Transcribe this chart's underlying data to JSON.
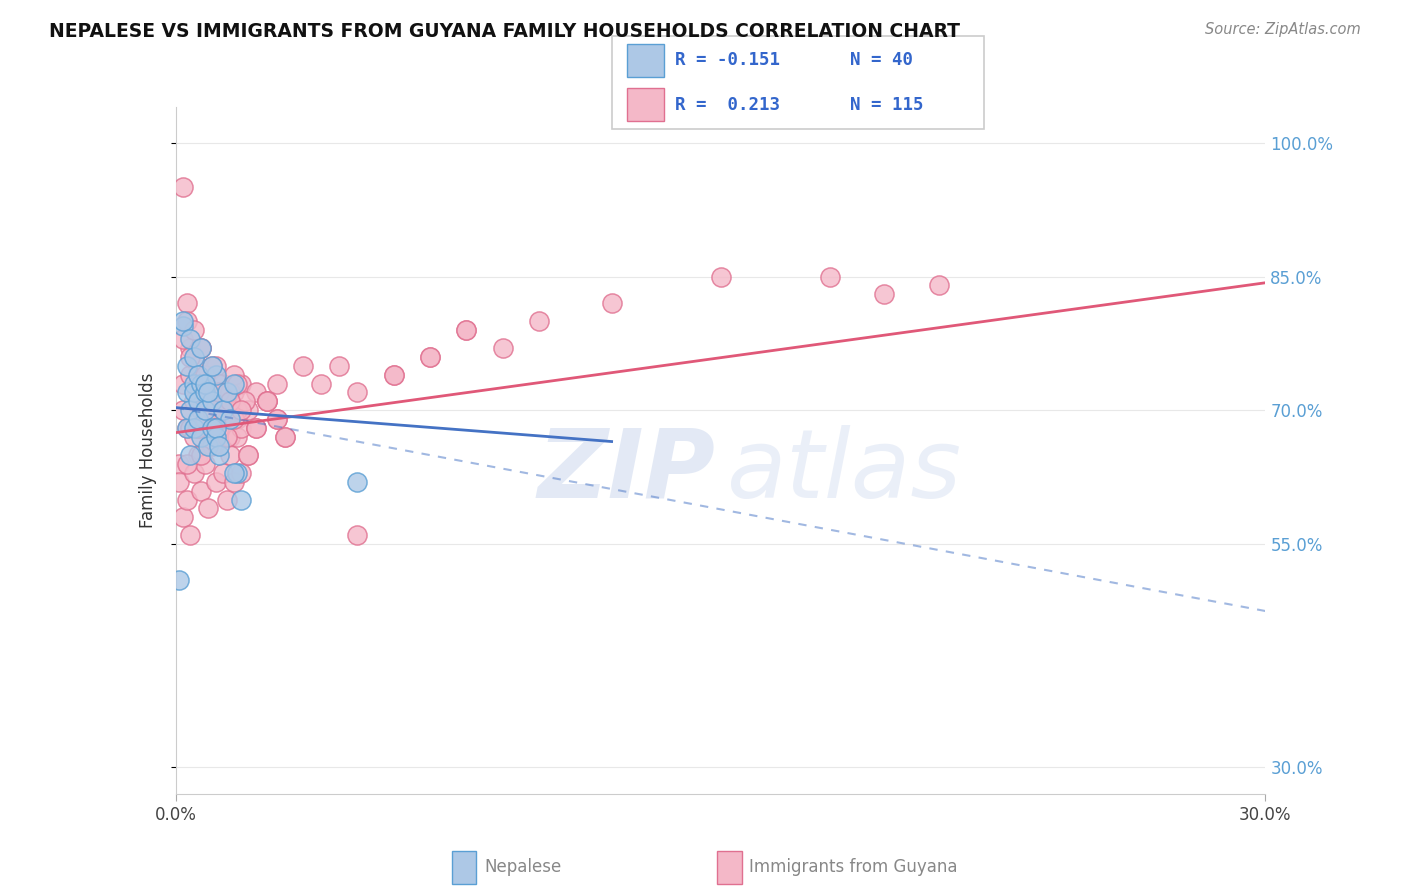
{
  "title": "NEPALESE VS IMMIGRANTS FROM GUYANA FAMILY HOUSEHOLDS CORRELATION CHART",
  "source_text": "Source: ZipAtlas.com",
  "ylabel": "Family Households",
  "yticks": [
    0.3,
    0.55,
    0.7,
    0.85,
    1.0
  ],
  "ytick_labels": [
    "30.0%",
    "55.0%",
    "70.0%",
    "85.0%",
    "100.0%"
  ],
  "xlim": [
    0.0,
    0.3
  ],
  "ylim": [
    0.27,
    1.04
  ],
  "nepalese_color": "#adc8e6",
  "nepalese_edge": "#5a9fd4",
  "guyana_color": "#f4b8c8",
  "guyana_edge": "#e07090",
  "trend_nepalese_color": "#4472c4",
  "trend_guyana_color": "#e05878",
  "background_color": "#ffffff",
  "grid_color": "#e8e8e8",
  "legend_color": "#3366cc",
  "nepalese_points_x": [
    0.001,
    0.002,
    0.003,
    0.003,
    0.004,
    0.004,
    0.005,
    0.005,
    0.005,
    0.006,
    0.006,
    0.007,
    0.007,
    0.008,
    0.008,
    0.009,
    0.01,
    0.01,
    0.011,
    0.011,
    0.012,
    0.013,
    0.014,
    0.015,
    0.016,
    0.017,
    0.018,
    0.002,
    0.003,
    0.004,
    0.005,
    0.006,
    0.007,
    0.008,
    0.009,
    0.01,
    0.011,
    0.012,
    0.016,
    0.05
  ],
  "nepalese_points_y": [
    0.51,
    0.795,
    0.72,
    0.68,
    0.65,
    0.7,
    0.73,
    0.68,
    0.72,
    0.71,
    0.69,
    0.67,
    0.73,
    0.7,
    0.72,
    0.66,
    0.68,
    0.71,
    0.74,
    0.67,
    0.65,
    0.7,
    0.72,
    0.69,
    0.73,
    0.63,
    0.6,
    0.8,
    0.75,
    0.78,
    0.76,
    0.74,
    0.77,
    0.73,
    0.72,
    0.75,
    0.68,
    0.66,
    0.63,
    0.62
  ],
  "guyana_points_x": [
    0.001,
    0.002,
    0.002,
    0.003,
    0.003,
    0.004,
    0.004,
    0.005,
    0.005,
    0.006,
    0.006,
    0.006,
    0.007,
    0.007,
    0.008,
    0.008,
    0.009,
    0.009,
    0.01,
    0.01,
    0.011,
    0.011,
    0.012,
    0.012,
    0.013,
    0.014,
    0.015,
    0.016,
    0.017,
    0.018,
    0.02,
    0.022,
    0.025,
    0.028,
    0.03,
    0.035,
    0.04,
    0.045,
    0.05,
    0.06,
    0.07,
    0.08,
    0.09,
    0.1,
    0.15,
    0.001,
    0.002,
    0.003,
    0.004,
    0.005,
    0.006,
    0.007,
    0.008,
    0.009,
    0.01,
    0.011,
    0.012,
    0.013,
    0.014,
    0.015,
    0.016,
    0.017,
    0.018,
    0.002,
    0.003,
    0.004,
    0.005,
    0.006,
    0.007,
    0.008,
    0.009,
    0.01,
    0.011,
    0.012,
    0.013,
    0.014,
    0.015,
    0.016,
    0.017,
    0.018,
    0.019,
    0.02,
    0.022,
    0.025,
    0.028,
    0.03,
    0.002,
    0.003,
    0.004,
    0.005,
    0.006,
    0.007,
    0.008,
    0.009,
    0.01,
    0.011,
    0.012,
    0.013,
    0.014,
    0.015,
    0.016,
    0.017,
    0.018,
    0.02,
    0.022,
    0.025,
    0.028,
    0.05,
    0.06,
    0.07,
    0.08,
    0.12,
    0.18,
    0.195,
    0.21
  ],
  "guyana_points_y": [
    0.64,
    0.95,
    0.73,
    0.68,
    0.82,
    0.68,
    0.77,
    0.67,
    0.71,
    0.68,
    0.72,
    0.75,
    0.7,
    0.77,
    0.69,
    0.73,
    0.66,
    0.68,
    0.7,
    0.72,
    0.67,
    0.75,
    0.71,
    0.69,
    0.73,
    0.7,
    0.67,
    0.72,
    0.69,
    0.73,
    0.7,
    0.72,
    0.71,
    0.73,
    0.67,
    0.75,
    0.73,
    0.75,
    0.72,
    0.74,
    0.76,
    0.79,
    0.77,
    0.8,
    0.85,
    0.62,
    0.58,
    0.6,
    0.56,
    0.63,
    0.65,
    0.61,
    0.64,
    0.59,
    0.66,
    0.62,
    0.68,
    0.63,
    0.6,
    0.65,
    0.62,
    0.67,
    0.63,
    0.7,
    0.64,
    0.74,
    0.71,
    0.68,
    0.65,
    0.69,
    0.72,
    0.7,
    0.68,
    0.73,
    0.71,
    0.69,
    0.72,
    0.74,
    0.7,
    0.68,
    0.71,
    0.65,
    0.68,
    0.71,
    0.69,
    0.67,
    0.78,
    0.8,
    0.76,
    0.79,
    0.73,
    0.77,
    0.74,
    0.71,
    0.75,
    0.68,
    0.72,
    0.7,
    0.67,
    0.71,
    0.69,
    0.73,
    0.7,
    0.65,
    0.68,
    0.71,
    0.69,
    0.56,
    0.74,
    0.76,
    0.79,
    0.82,
    0.85,
    0.83,
    0.84
  ],
  "trend_guyana_x0": 0.0,
  "trend_guyana_y0": 0.675,
  "trend_guyana_x1": 0.3,
  "trend_guyana_y1": 0.843,
  "trend_nepalese_solid_x0": 0.0,
  "trend_nepalese_solid_y0": 0.703,
  "trend_nepalese_solid_x1": 0.12,
  "trend_nepalese_solid_y1": 0.665,
  "trend_nepalese_dash_x0": 0.0,
  "trend_nepalese_dash_y0": 0.703,
  "trend_nepalese_dash_x1": 0.3,
  "trend_nepalese_dash_y1": 0.475
}
